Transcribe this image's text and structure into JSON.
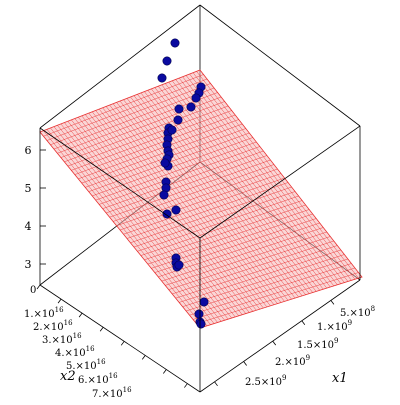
{
  "chart_data": {
    "type": "scatter3d",
    "title": "",
    "xlabel": "x1",
    "ylabel": "x2",
    "zlabel": "",
    "x1_ticks": [
      {
        "label": "5.×10",
        "exp": "8"
      },
      {
        "label": "1.×10",
        "exp": "9"
      },
      {
        "label": "1.5×10",
        "exp": "9"
      },
      {
        "label": "2.×10",
        "exp": "9"
      },
      {
        "label": "2.5×10",
        "exp": "9"
      }
    ],
    "x2_ticks": [
      {
        "label": "0",
        "exp": ""
      },
      {
        "label": "1.×10",
        "exp": "16"
      },
      {
        "label": "2.×10",
        "exp": "16"
      },
      {
        "label": "3.×10",
        "exp": "16"
      },
      {
        "label": "4.×10",
        "exp": "16"
      },
      {
        "label": "5.×10",
        "exp": "16"
      },
      {
        "label": "6.×10",
        "exp": "16"
      },
      {
        "label": "7.×10",
        "exp": "16"
      }
    ],
    "z_ticks": [
      "3",
      "4",
      "5",
      "6"
    ],
    "z_range": [
      2.6,
      7.4
    ],
    "surface_color": "#e83030",
    "point_color": "#0a0aa0",
    "points": [
      {
        "x1": 420000000.0,
        "x2": 6.8e+16,
        "y": 7.1
      },
      {
        "x1": 460000000.0,
        "x2": 6.2e+16,
        "y": 6.95
      },
      {
        "x1": 530000000.0,
        "x2": 5.3e+16,
        "y": 6.8
      },
      {
        "x1": 2200000000.0,
        "x2": 7.4e+16,
        "y": 6.35
      },
      {
        "x1": 2100000000.0,
        "x2": 7.4e+16,
        "y": 6.2
      },
      {
        "x1": 1600000000.0,
        "x2": 6.6e+16,
        "y": 6.02
      },
      {
        "x1": 1300000000.0,
        "x2": 6.2e+16,
        "y": 5.9
      },
      {
        "x1": 1100000000.0,
        "x2": 6e+16,
        "y": 5.75
      },
      {
        "x1": 1200000000.0,
        "x2": 6e+16,
        "y": 5.7
      },
      {
        "x1": 1000000000.0,
        "x2": 5.9e+16,
        "y": 5.6
      },
      {
        "x1": 1100000000.0,
        "x2": 5.9e+16,
        "y": 5.45
      },
      {
        "x1": 1000000000.0,
        "x2": 5.7e+16,
        "y": 5.4
      },
      {
        "x1": 1000000000.0,
        "x2": 5.9e+16,
        "y": 5.35
      },
      {
        "x1": 1000000000.0,
        "x2": 5.9e+16,
        "y": 5.25
      },
      {
        "x1": 1000000000.0,
        "x2": 5.9e+16,
        "y": 5.15
      },
      {
        "x1": 900000000.0,
        "x2": 5.8e+16,
        "y": 5.05
      },
      {
        "x1": 900000000.0,
        "x2": 5.8e+16,
        "y": 4.95
      },
      {
        "x1": 1000000000.0,
        "x2": 5.8e+16,
        "y": 4.85
      },
      {
        "x1": 1000000000.0,
        "x2": 5.8e+16,
        "y": 4.55
      },
      {
        "x1": 1000000000.0,
        "x2": 5.8e+16,
        "y": 4.4
      },
      {
        "x1": 1000000000.0,
        "x2": 5.7e+16,
        "y": 4.35
      },
      {
        "x1": 900000000.0,
        "x2": 5.7e+16,
        "y": 4.05
      },
      {
        "x1": 1900000000.0,
        "x2": 6.4e+16,
        "y": 4.55
      },
      {
        "x1": 1200000000.0,
        "x2": 5.6e+16,
        "y": 4.55
      },
      {
        "x1": 2400000000.0,
        "x2": 5.6e+16,
        "y": 3.72
      },
      {
        "x1": 2300000000.0,
        "x2": 5.4e+16,
        "y": 3.58
      },
      {
        "x1": 2500000000.0,
        "x2": 5.4e+16,
        "y": 3.5
      },
      {
        "x1": 2600000000.0,
        "x2": 5.6e+16,
        "y": 3.4
      },
      {
        "x1": 2700000000.0,
        "x2": 2.2e+16,
        "y": 2.05
      },
      {
        "x1": 2500000000.0,
        "x2": 2.3e+16,
        "y": 1.85
      },
      {
        "x1": 2500000000.0,
        "x2": 2.3e+16,
        "y": 1.6
      },
      {
        "x1": 2500000000.0,
        "x2": 2.3e+16,
        "y": 1.55
      }
    ]
  }
}
